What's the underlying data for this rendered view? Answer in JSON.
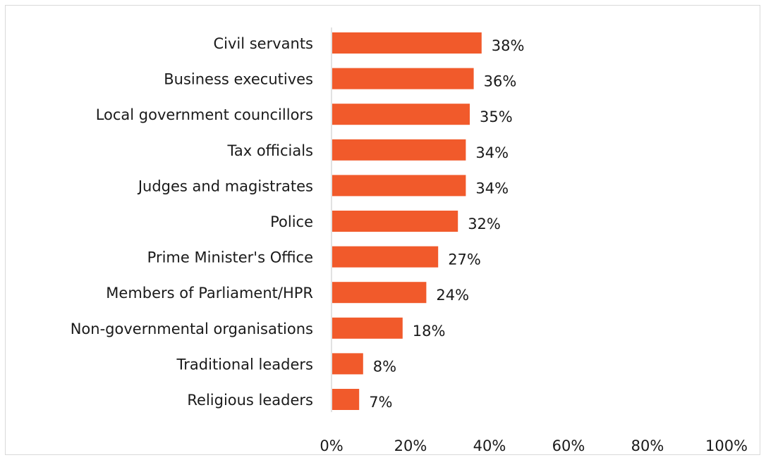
{
  "chart_data": {
    "type": "bar",
    "orientation": "horizontal",
    "categories": [
      "Civil servants",
      "Business executives",
      "Local government councillors",
      "Tax officials",
      "Judges and magistrates",
      "Police",
      "Prime Minister's Office",
      "Members of Parliament/HPR",
      "Non-governmental organisations",
      "Traditional leaders",
      "Religious leaders"
    ],
    "values": [
      38,
      36,
      35,
      34,
      34,
      32,
      27,
      24,
      18,
      8,
      7
    ],
    "value_labels": [
      "38%",
      "36%",
      "35%",
      "34%",
      "34%",
      "32%",
      "27%",
      "24%",
      "18%",
      "8%",
      "7%"
    ],
    "x_ticks": [
      0,
      20,
      40,
      60,
      80,
      100
    ],
    "x_tick_labels": [
      "0%",
      "20%",
      "40%",
      "60%",
      "80%",
      "100%"
    ],
    "xlim": [
      0,
      100
    ],
    "grid": false,
    "legend": "none",
    "bar_color": "#f15a2b",
    "title": "",
    "xlabel": "",
    "ylabel": ""
  }
}
